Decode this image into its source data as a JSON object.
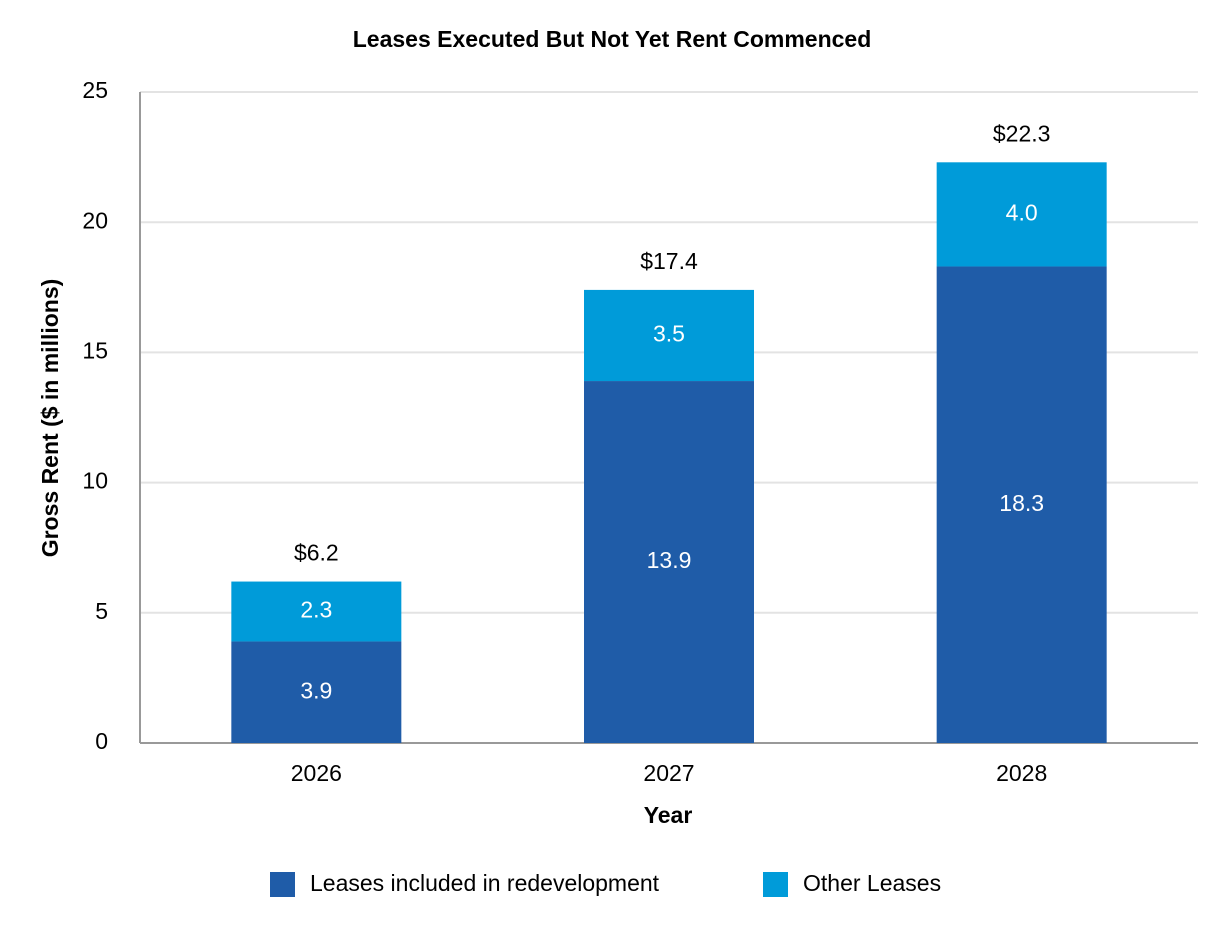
{
  "chart_data": {
    "type": "stacked_bar",
    "title": "Leases Executed But Not Yet Rent Commenced",
    "x_label": "Year",
    "y_label": "Gross Rent ($ in millions)",
    "categories": [
      "2026",
      "2027",
      "2028"
    ],
    "series": [
      {
        "name": "Leases included in redevelopment",
        "color": "#1f5ca8",
        "values": [
          3.9,
          13.9,
          18.3
        ]
      },
      {
        "name": "Other Leases",
        "color": "#009bd9",
        "values": [
          2.3,
          3.5,
          4.0
        ],
        "value_labels": [
          "2.3",
          "3.5",
          "4.0"
        ]
      }
    ],
    "totals": {
      "values": [
        6.2,
        17.4,
        22.3
      ],
      "value_labels": [
        "$6.2",
        "$17.4",
        "$22.3"
      ]
    },
    "ylim": [
      0,
      25
    ],
    "yticks": [
      0,
      5,
      10,
      15,
      20,
      25
    ],
    "grid": true,
    "legend": "bottom"
  }
}
